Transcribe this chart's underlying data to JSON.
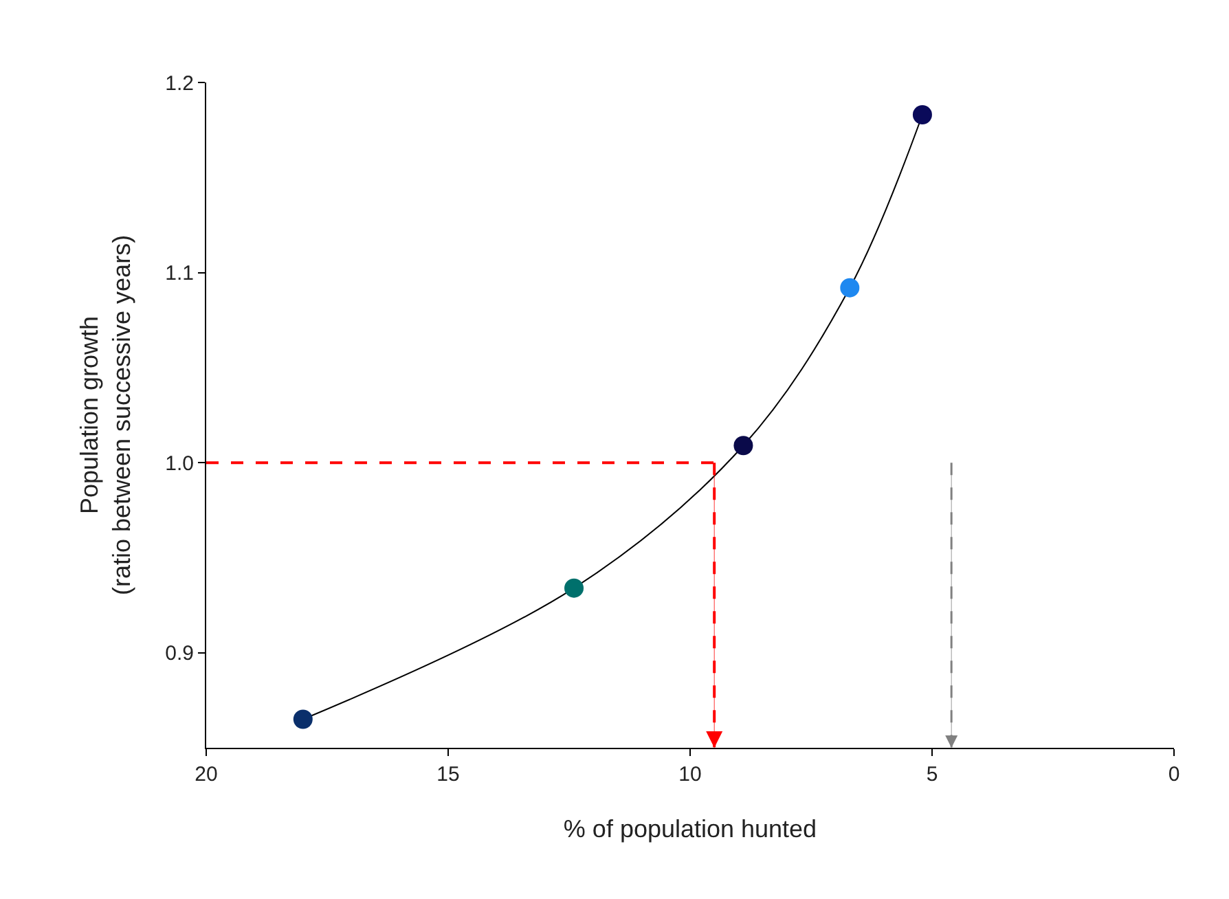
{
  "chart_data": {
    "type": "line",
    "xlabel": "% of population hunted",
    "ylabel": "Population growth\n(ratio between successive years)",
    "x": [
      18.0,
      12.4,
      8.9,
      6.7,
      5.2
    ],
    "series": [
      {
        "color": "#000000",
        "colors": [
          "#0a2f6b",
          "#00706c",
          "#0a0a4a",
          "#1e88f0",
          "#0a0a5a"
        ],
        "values": [
          0.865,
          0.934,
          1.009,
          1.092,
          1.183
        ]
      }
    ],
    "xlim": [
      20,
      0
    ],
    "xticks": [
      20,
      15,
      10,
      5,
      0
    ],
    "ylim": [
      0.85,
      1.2
    ],
    "yticks": [
      0.9,
      {
        "value": 1.0,
        "label": "1.0"
      },
      1.1,
      1.2
    ],
    "marker": "circle",
    "line_style": "solid",
    "legend": false,
    "ref_lines": [
      {
        "axis": "y",
        "value": 1.0,
        "color": "#ff0000",
        "line_style": "dashed"
      },
      {
        "axis": "x",
        "value": 9.5,
        "color": "#ff0000",
        "line_style": "dashed"
      },
      {
        "axis": "x",
        "value": 4.6,
        "color": "#808080",
        "line_style": "dashed"
      }
    ]
  }
}
